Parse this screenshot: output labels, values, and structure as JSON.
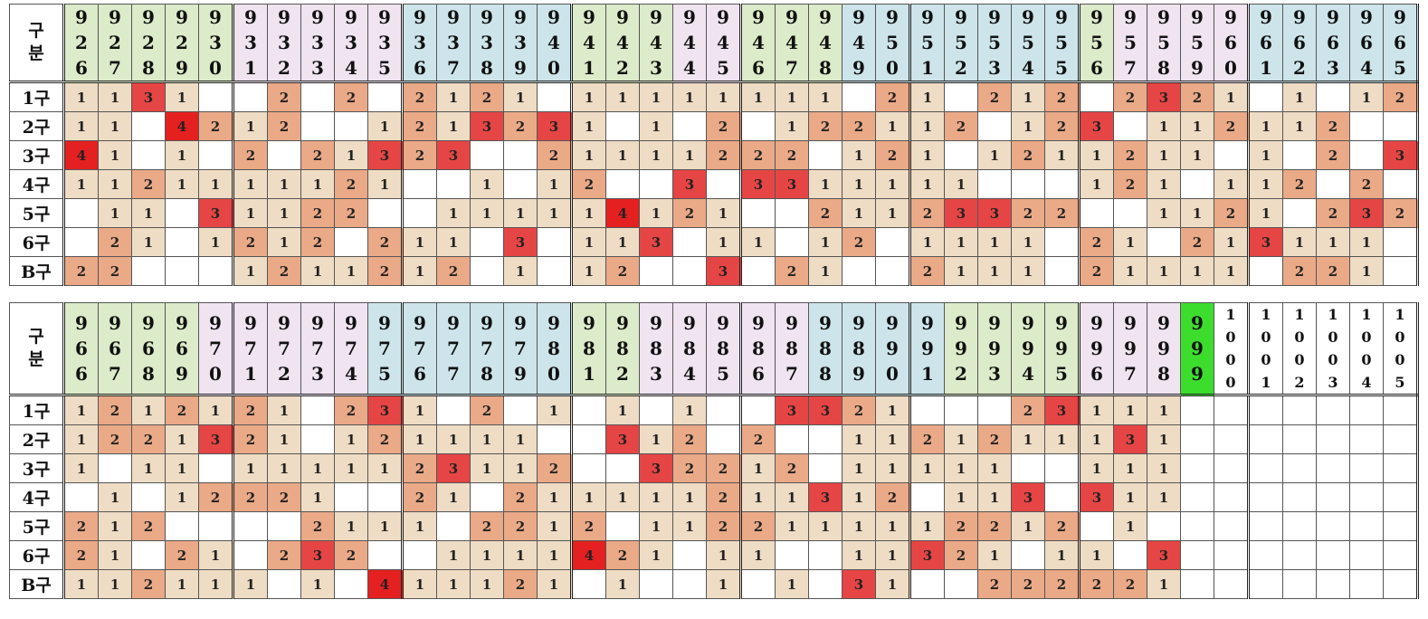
{
  "corner_label": [
    "구",
    "분"
  ],
  "row_labels": [
    "1구",
    "2구",
    "3구",
    "4구",
    "5구",
    "6구",
    "B구"
  ],
  "level_colors": {
    "1": "#efdcc4",
    "2": "#eaa987",
    "3": "#e64545",
    "4": "#e42020"
  },
  "header_colors": {
    "g": "#dcebc9",
    "b": "#cde5ea",
    "p": "#f0e4f1",
    "l": "#3ddd2e",
    "w": "#ffffff"
  },
  "table1": {
    "headers": [
      [
        "9",
        "2",
        "6"
      ],
      [
        "9",
        "2",
        "7"
      ],
      [
        "9",
        "2",
        "8"
      ],
      [
        "9",
        "2",
        "9"
      ],
      [
        "9",
        "3",
        "0"
      ],
      [
        "9",
        "3",
        "1"
      ],
      [
        "9",
        "3",
        "2"
      ],
      [
        "9",
        "3",
        "3"
      ],
      [
        "9",
        "3",
        "4"
      ],
      [
        "9",
        "3",
        "5"
      ],
      [
        "9",
        "3",
        "6"
      ],
      [
        "9",
        "3",
        "7"
      ],
      [
        "9",
        "3",
        "8"
      ],
      [
        "9",
        "3",
        "9"
      ],
      [
        "9",
        "4",
        "0"
      ],
      [
        "9",
        "4",
        "1"
      ],
      [
        "9",
        "4",
        "2"
      ],
      [
        "9",
        "4",
        "3"
      ],
      [
        "9",
        "4",
        "4"
      ],
      [
        "9",
        "4",
        "5"
      ],
      [
        "9",
        "4",
        "6"
      ],
      [
        "9",
        "4",
        "7"
      ],
      [
        "9",
        "4",
        "8"
      ],
      [
        "9",
        "4",
        "9"
      ],
      [
        "9",
        "5",
        "0"
      ],
      [
        "9",
        "5",
        "1"
      ],
      [
        "9",
        "5",
        "2"
      ],
      [
        "9",
        "5",
        "3"
      ],
      [
        "9",
        "5",
        "4"
      ],
      [
        "9",
        "5",
        "5"
      ],
      [
        "9",
        "5",
        "6"
      ],
      [
        "9",
        "5",
        "7"
      ],
      [
        "9",
        "5",
        "8"
      ],
      [
        "9",
        "5",
        "9"
      ],
      [
        "9",
        "6",
        "0"
      ],
      [
        "9",
        "6",
        "1"
      ],
      [
        "9",
        "6",
        "2"
      ],
      [
        "9",
        "6",
        "3"
      ],
      [
        "9",
        "6",
        "4"
      ],
      [
        "9",
        "6",
        "5"
      ]
    ],
    "header_bg": [
      "g",
      "g",
      "g",
      "g",
      "g",
      "p",
      "p",
      "p",
      "p",
      "p",
      "b",
      "b",
      "b",
      "b",
      "b",
      "g",
      "g",
      "g",
      "p",
      "p",
      "g",
      "g",
      "g",
      "b",
      "b",
      "b",
      "b",
      "b",
      "b",
      "b",
      "g",
      "p",
      "p",
      "p",
      "p",
      "b",
      "b",
      "b",
      "b",
      "b"
    ],
    "rows": [
      [
        "1",
        "1",
        "3",
        "1",
        "",
        "",
        "2",
        "",
        "2",
        "",
        "2",
        "1",
        "2",
        "1",
        "",
        "1",
        "1",
        "1",
        "1",
        "1",
        "1",
        "1",
        "1",
        "",
        "2",
        "1",
        "",
        "2",
        "1",
        "2",
        "",
        "2",
        "3",
        "2",
        "1",
        "",
        "1",
        "",
        "1",
        "2"
      ],
      [
        "1",
        "1",
        "",
        "4",
        "2",
        "1",
        "2",
        "",
        "",
        "1",
        "2",
        "1",
        "3",
        "2",
        "3",
        "1",
        "",
        "1",
        "",
        "2",
        "",
        "1",
        "2",
        "2",
        "1",
        "1",
        "2",
        "",
        "1",
        "2",
        "3",
        "",
        "1",
        "1",
        "2",
        "1",
        "1",
        "2",
        "",
        ""
      ],
      [
        "4",
        "1",
        "",
        "1",
        "",
        "2",
        "",
        "2",
        "1",
        "3",
        "2",
        "3",
        "",
        "",
        "2",
        "1",
        "1",
        "1",
        "1",
        "2",
        "2",
        "2",
        "",
        "1",
        "2",
        "1",
        "",
        "1",
        "2",
        "1",
        "1",
        "2",
        "1",
        "1",
        "",
        "1",
        "",
        "2",
        "",
        "3"
      ],
      [
        "1",
        "1",
        "2",
        "1",
        "1",
        "1",
        "1",
        "1",
        "2",
        "1",
        "",
        "",
        "1",
        "",
        "1",
        "2",
        "",
        "",
        "3",
        "",
        "3",
        "3",
        "1",
        "1",
        "1",
        "1",
        "1",
        "",
        "",
        "",
        "1",
        "2",
        "1",
        "",
        "1",
        "1",
        "2",
        "",
        "2",
        ""
      ],
      [
        "",
        "1",
        "1",
        "",
        "3",
        "1",
        "1",
        "2",
        "2",
        "",
        "",
        "1",
        "1",
        "1",
        "1",
        "1",
        "4",
        "1",
        "2",
        "1",
        "",
        "",
        "2",
        "1",
        "1",
        "2",
        "3",
        "3",
        "2",
        "2",
        "",
        "",
        "1",
        "1",
        "2",
        "1",
        "",
        "2",
        "3",
        "2"
      ],
      [
        "",
        "2",
        "1",
        "",
        "1",
        "2",
        "1",
        "2",
        "",
        "2",
        "1",
        "1",
        "",
        "3",
        "",
        "1",
        "1",
        "3",
        "",
        "1",
        "1",
        "",
        "1",
        "2",
        "",
        "1",
        "1",
        "1",
        "1",
        "",
        "2",
        "1",
        "",
        "2",
        "1",
        "3",
        "1",
        "1",
        "1",
        ""
      ],
      [
        "2",
        "2",
        "",
        "",
        "",
        "1",
        "2",
        "1",
        "1",
        "2",
        "1",
        "2",
        "",
        "1",
        "",
        "1",
        "2",
        "",
        "",
        "3",
        "",
        "2",
        "1",
        "",
        "",
        "2",
        "1",
        "1",
        "1",
        "",
        "2",
        "1",
        "1",
        "1",
        "1",
        "",
        "2",
        "2",
        "1",
        ""
      ]
    ]
  },
  "table2": {
    "headers": [
      [
        "9",
        "6",
        "6"
      ],
      [
        "9",
        "6",
        "7"
      ],
      [
        "9",
        "6",
        "8"
      ],
      [
        "9",
        "6",
        "9"
      ],
      [
        "9",
        "7",
        "0"
      ],
      [
        "9",
        "7",
        "1"
      ],
      [
        "9",
        "7",
        "2"
      ],
      [
        "9",
        "7",
        "3"
      ],
      [
        "9",
        "7",
        "4"
      ],
      [
        "9",
        "7",
        "5"
      ],
      [
        "9",
        "7",
        "6"
      ],
      [
        "9",
        "7",
        "7"
      ],
      [
        "9",
        "7",
        "8"
      ],
      [
        "9",
        "7",
        "9"
      ],
      [
        "9",
        "8",
        "0"
      ],
      [
        "9",
        "8",
        "1"
      ],
      [
        "9",
        "8",
        "2"
      ],
      [
        "9",
        "8",
        "3"
      ],
      [
        "9",
        "8",
        "4"
      ],
      [
        "9",
        "8",
        "5"
      ],
      [
        "9",
        "8",
        "6"
      ],
      [
        "9",
        "8",
        "7"
      ],
      [
        "9",
        "8",
        "8"
      ],
      [
        "9",
        "8",
        "9"
      ],
      [
        "9",
        "9",
        "0"
      ],
      [
        "9",
        "9",
        "1"
      ],
      [
        "9",
        "9",
        "2"
      ],
      [
        "9",
        "9",
        "3"
      ],
      [
        "9",
        "9",
        "4"
      ],
      [
        "9",
        "9",
        "5"
      ],
      [
        "9",
        "9",
        "6"
      ],
      [
        "9",
        "9",
        "7"
      ],
      [
        "9",
        "9",
        "8"
      ],
      [
        "9",
        "9",
        "9"
      ],
      [
        "1",
        "0",
        "0",
        "0"
      ],
      [
        "1",
        "0",
        "0",
        "1"
      ],
      [
        "1",
        "0",
        "0",
        "2"
      ],
      [
        "1",
        "0",
        "0",
        "3"
      ],
      [
        "1",
        "0",
        "0",
        "4"
      ],
      [
        "1",
        "0",
        "0",
        "5"
      ]
    ],
    "header_bg": [
      "g",
      "g",
      "g",
      "g",
      "p",
      "p",
      "p",
      "p",
      "p",
      "b",
      "b",
      "b",
      "b",
      "b",
      "b",
      "g",
      "g",
      "p",
      "p",
      "p",
      "p",
      "p",
      "b",
      "b",
      "b",
      "b",
      "g",
      "g",
      "g",
      "g",
      "p",
      "p",
      "p",
      "l",
      "w",
      "w",
      "w",
      "w",
      "w",
      "w"
    ],
    "rows": [
      [
        "1",
        "2",
        "1",
        "2",
        "1",
        "2",
        "1",
        "",
        "2",
        "3",
        "1",
        "",
        "2",
        "",
        "1",
        "",
        "1",
        "",
        "1",
        "",
        "",
        "3",
        "3",
        "2",
        "1",
        "",
        "",
        "",
        "2",
        "3",
        "1",
        "1",
        "1",
        "",
        "",
        "",
        "",
        "",
        "",
        ""
      ],
      [
        "1",
        "2",
        "2",
        "1",
        "3",
        "2",
        "1",
        "",
        "1",
        "2",
        "1",
        "1",
        "1",
        "1",
        "",
        "",
        "3",
        "1",
        "2",
        "",
        "2",
        "",
        "",
        "1",
        "1",
        "2",
        "1",
        "2",
        "1",
        "1",
        "1",
        "3",
        "1",
        "",
        "",
        "",
        "",
        "",
        "",
        ""
      ],
      [
        "1",
        "",
        "1",
        "1",
        "",
        "1",
        "1",
        "1",
        "1",
        "1",
        "2",
        "3",
        "1",
        "1",
        "2",
        "",
        "",
        "3",
        "2",
        "2",
        "1",
        "2",
        "",
        "1",
        "1",
        "1",
        "1",
        "1",
        "",
        "",
        "1",
        "1",
        "1",
        "",
        "",
        "",
        "",
        "",
        "",
        ""
      ],
      [
        "",
        "1",
        "",
        "1",
        "2",
        "2",
        "2",
        "1",
        "",
        "",
        "2",
        "1",
        "",
        "2",
        "1",
        "1",
        "1",
        "1",
        "1",
        "2",
        "1",
        "1",
        "3",
        "1",
        "2",
        "",
        "1",
        "1",
        "3",
        "",
        "3",
        "1",
        "1",
        "",
        "",
        "",
        "",
        "",
        "",
        ""
      ],
      [
        "2",
        "1",
        "2",
        "",
        "",
        "",
        "",
        "2",
        "1",
        "1",
        "1",
        "",
        "2",
        "2",
        "1",
        "2",
        "",
        "1",
        "1",
        "2",
        "2",
        "1",
        "1",
        "1",
        "1",
        "1",
        "2",
        "2",
        "1",
        "2",
        "",
        "1",
        "",
        "",
        "",
        "",
        "",
        "",
        "",
        ""
      ],
      [
        "2",
        "1",
        "",
        "2",
        "1",
        "",
        "2",
        "3",
        "2",
        "",
        "",
        "1",
        "1",
        "1",
        "1",
        "4",
        "2",
        "1",
        "",
        "1",
        "1",
        "",
        "",
        "1",
        "1",
        "3",
        "2",
        "1",
        "",
        "1",
        "1",
        "",
        "3",
        "",
        "",
        "",
        "",
        "",
        "",
        ""
      ],
      [
        "1",
        "1",
        "2",
        "1",
        "1",
        "1",
        "",
        "1",
        "",
        "4",
        "1",
        "1",
        "1",
        "2",
        "1",
        "",
        "1",
        "",
        "",
        "1",
        "",
        "1",
        "",
        "3",
        "1",
        "",
        "",
        "2",
        "2",
        "2",
        "2",
        "2",
        "1",
        "",
        "",
        "",
        "",
        "",
        "",
        ""
      ]
    ]
  }
}
